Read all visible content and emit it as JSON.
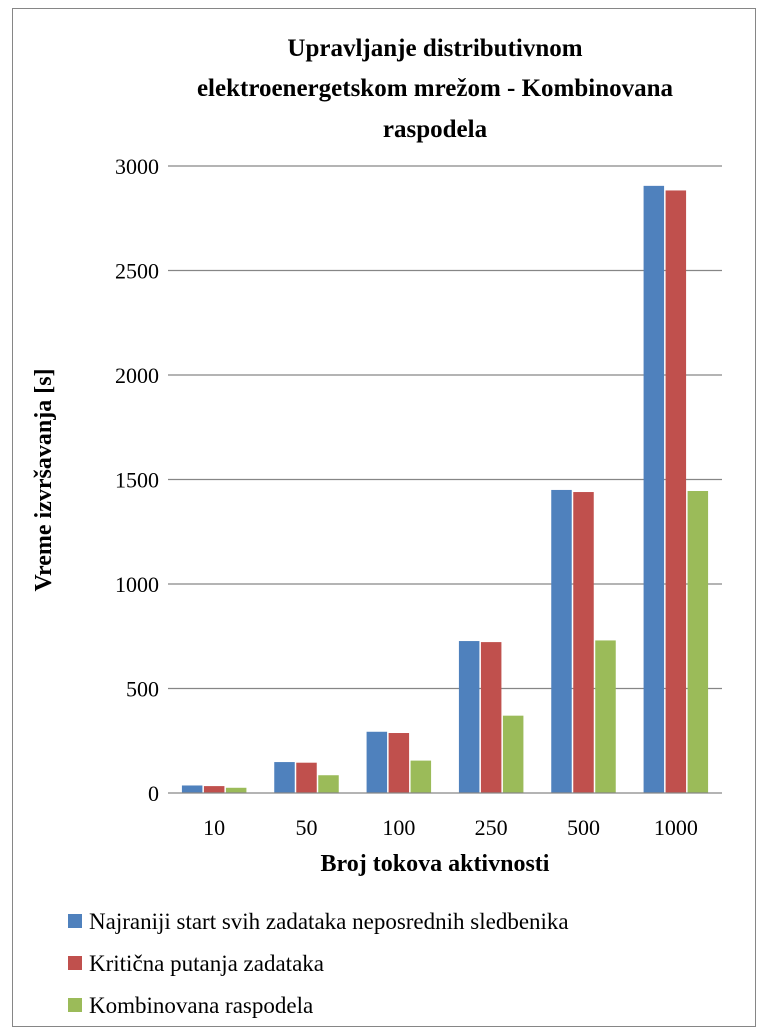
{
  "chart_data": {
    "type": "bar",
    "title_lines": [
      "Upravljanje distributivnom",
      "elektroenergetskom mrežom  - Kombinovana",
      "raspodela"
    ],
    "xlabel": "Broj tokova aktivnosti",
    "ylabel": "Vreme izvršavanja [s]",
    "ylim": [
      0,
      3000
    ],
    "yticks": [
      0,
      500,
      1000,
      1500,
      2000,
      2500,
      3000
    ],
    "grid": true,
    "legend_position": "bottom",
    "categories": [
      "10",
      "50",
      "100",
      "250",
      "500",
      "1000"
    ],
    "series": [
      {
        "name": "Najraniji start svih zadataka neposrednih sledbenika",
        "color": "#4F81BD",
        "values": [
          36,
          148,
          293,
          727,
          1450,
          2905
        ]
      },
      {
        "name": "Kritična putanja zadataka",
        "color": "#C0504D",
        "values": [
          33,
          145,
          287,
          722,
          1440,
          2883
        ]
      },
      {
        "name": "Kombinovana raspodela",
        "color": "#9BBB59",
        "values": [
          25,
          85,
          155,
          370,
          730,
          1445
        ]
      }
    ]
  }
}
